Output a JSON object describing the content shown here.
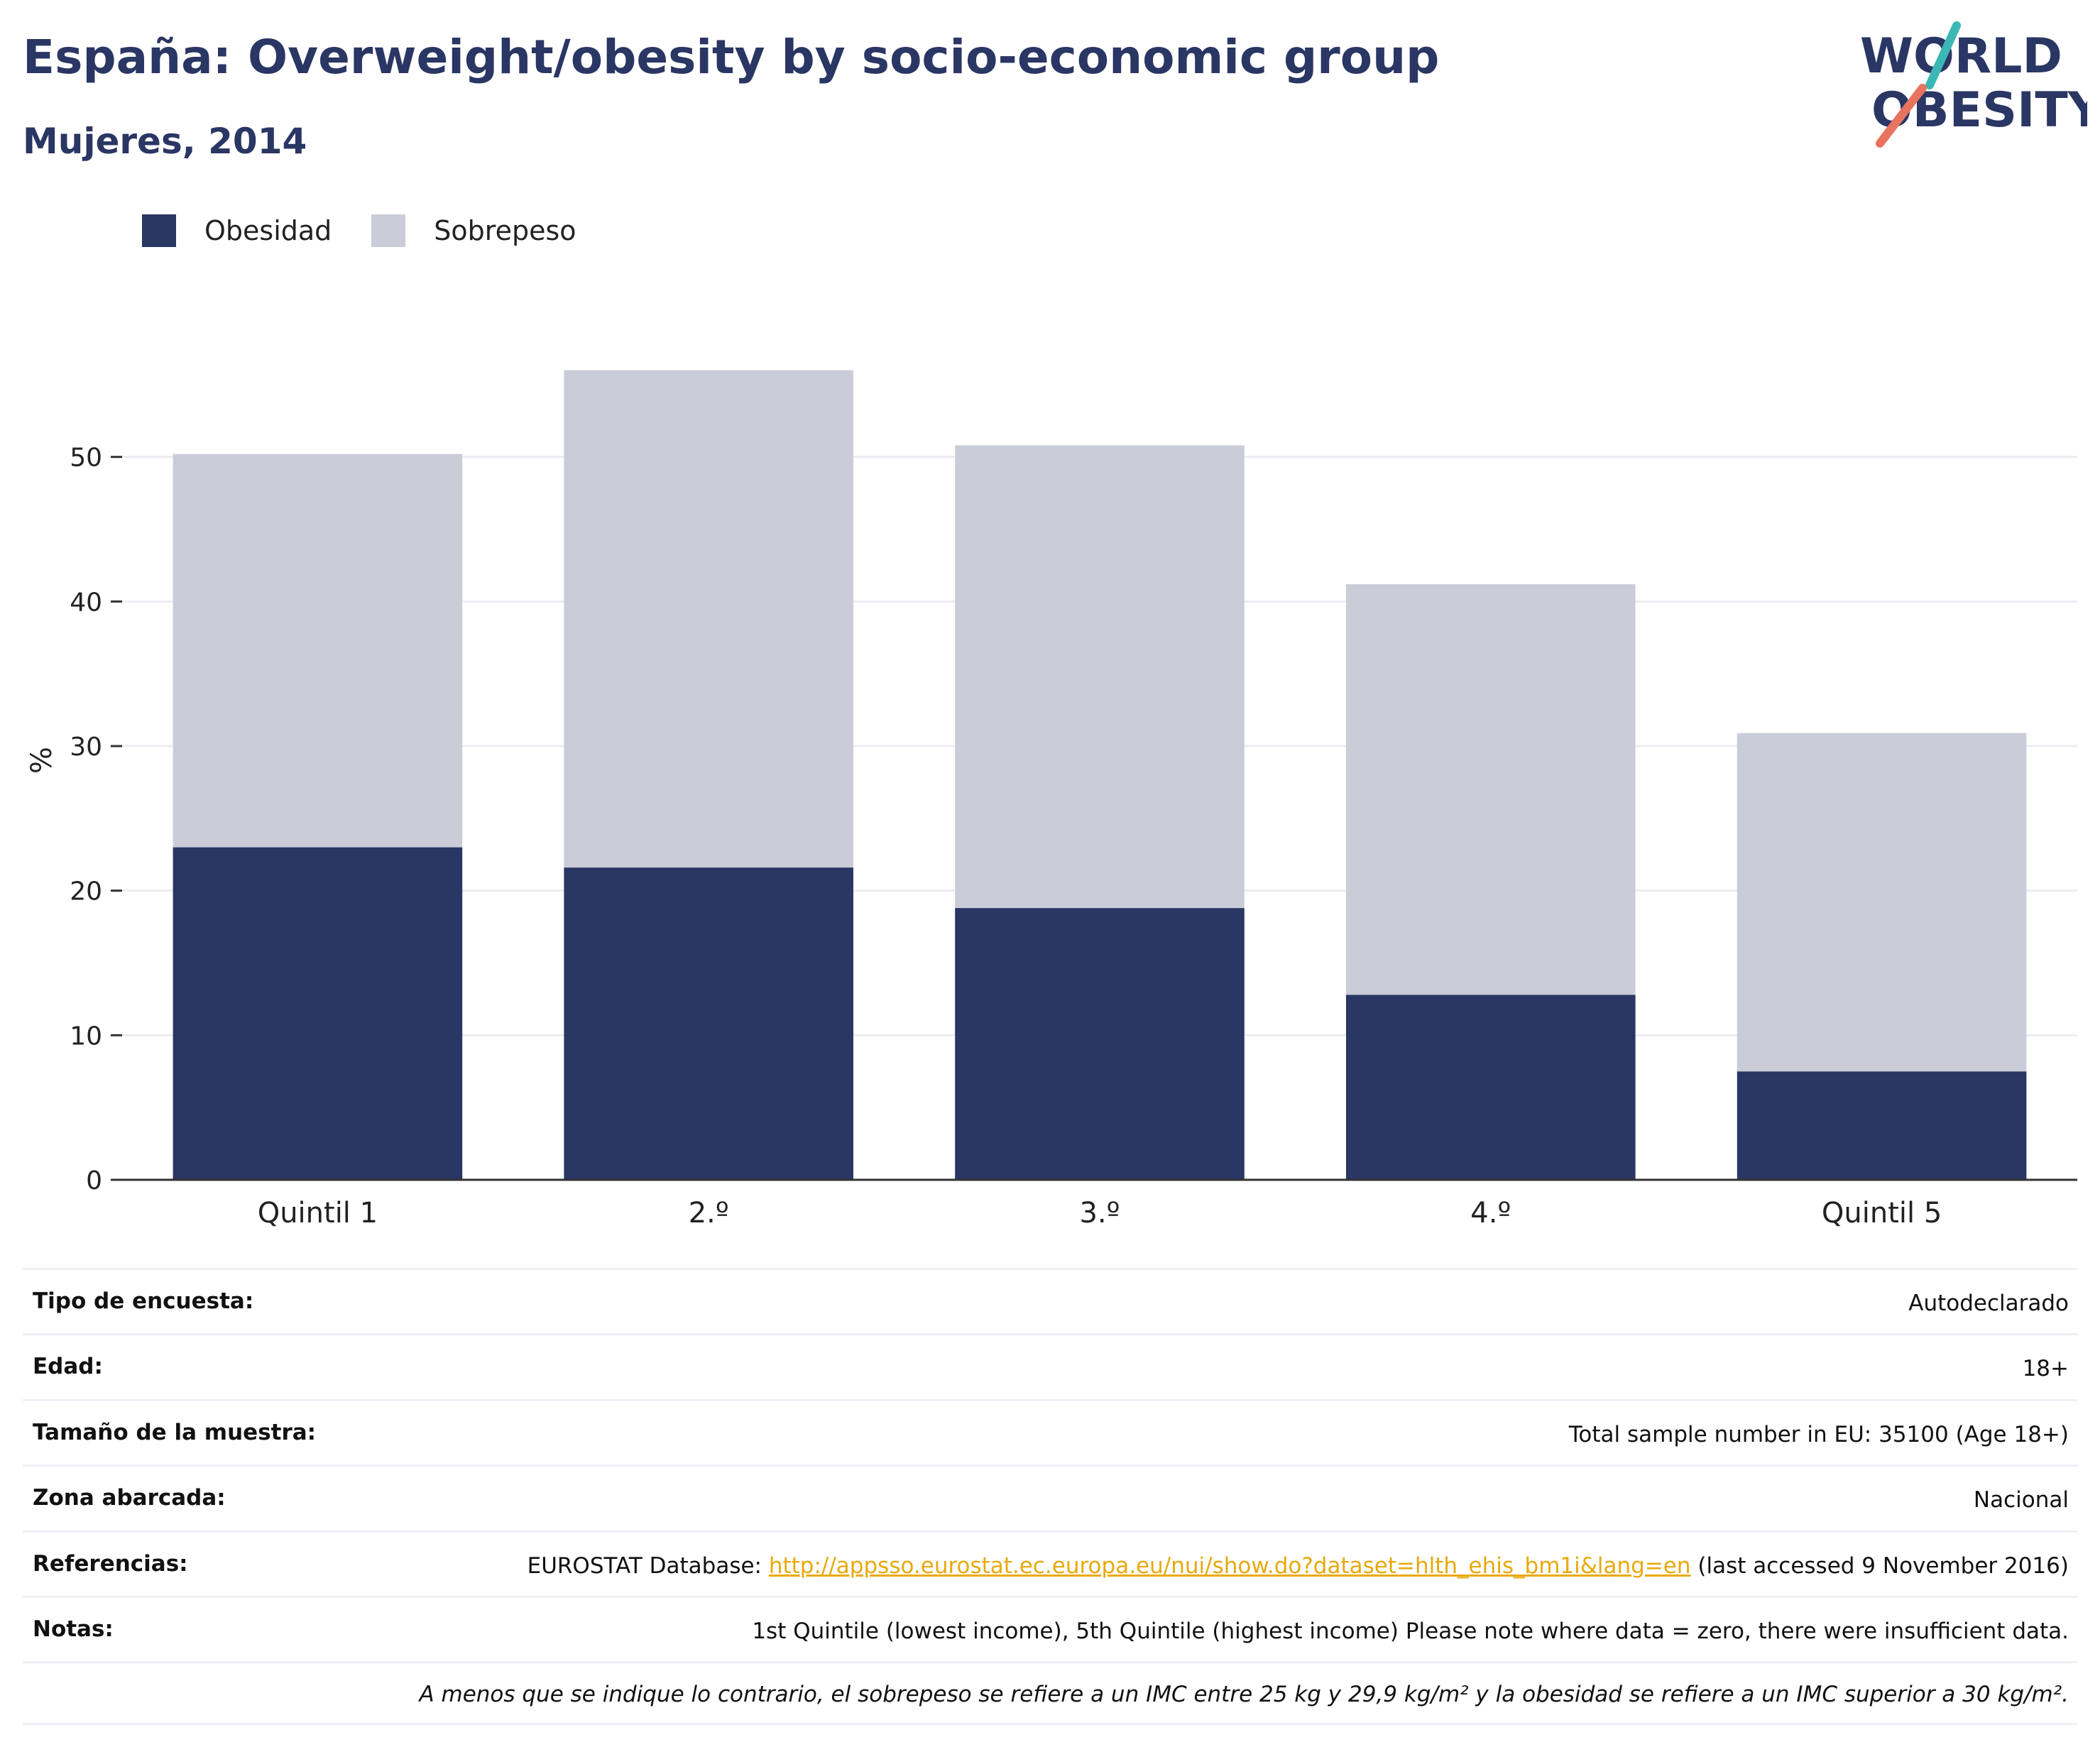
{
  "header": {
    "title": "España: Overweight/obesity by socio-economic group",
    "subtitle": "Mujeres, 2014"
  },
  "logo": {
    "line1": "WORLD",
    "line2": "OBESITY"
  },
  "colors": {
    "obesity": "#2a3663",
    "overweight": "#cacdd8",
    "title": "#2a3663",
    "link": "#e8a90e",
    "logo_teal": "#3bb8b5",
    "logo_coral": "#e8735f"
  },
  "chart_data": {
    "type": "bar",
    "stacked": true,
    "categories": [
      "Quintil 1",
      "2.º",
      "3.º",
      "4.º",
      "Quintil 5"
    ],
    "series": [
      {
        "name": "Obesidad",
        "values": [
          23.0,
          21.6,
          18.8,
          12.8,
          7.5
        ]
      },
      {
        "name": "Sobrepeso",
        "values": [
          27.2,
          34.4,
          32.0,
          28.4,
          23.4
        ]
      }
    ],
    "ylabel": "%",
    "yticks": [
      0,
      10,
      20,
      30,
      40,
      50
    ],
    "ylim": [
      0,
      60
    ],
    "grid": true,
    "legend_position": "top-left"
  },
  "meta": {
    "rows": [
      {
        "label": "Tipo de encuesta:",
        "value": "Autodeclarado"
      },
      {
        "label": "Edad:",
        "value": "18+"
      },
      {
        "label": "Tamaño de la muestra:",
        "value": "Total sample number in EU: 35100 (Age 18+)"
      },
      {
        "label": "Zona abarcada:",
        "value": "Nacional"
      }
    ],
    "references": {
      "label": "Referencias:",
      "prefix": "EUROSTAT Database: ",
      "link": "http://appsso.eurostat.ec.europa.eu/nui/show.do?dataset=hlth_ehis_bm1i&lang=en",
      "suffix": " (last accessed 9 November 2016)"
    },
    "notes": {
      "label": "Notas:",
      "value": "1st Quintile (lowest income), 5th Quintile (highest income) Please note where data = zero, there were insufficient data."
    },
    "footnote": "A menos que se indique lo contrario, el sobrepeso se refiere a un IMC entre 25 kg y 29,9 kg/m² y la obesidad se refiere a un IMC superior a 30 kg/m²."
  }
}
